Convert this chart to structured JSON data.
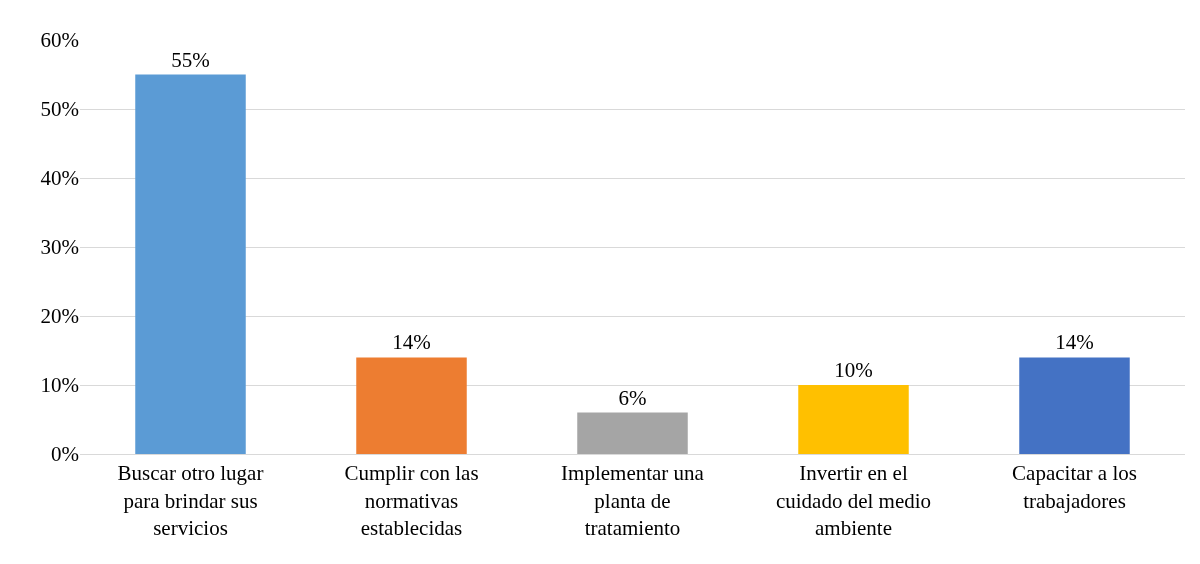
{
  "chart_data": {
    "type": "bar",
    "categories": [
      "Buscar otro lugar para brindar sus servicios",
      "Cumplir con las normativas establecidas",
      "Implementar una planta de tratamiento",
      "Invertir en el cuidado del medio ambiente",
      "Capacitar a los trabajadores"
    ],
    "values": [
      55,
      14,
      6,
      10,
      14
    ],
    "colors": [
      "#5b9bd5",
      "#ed7d31",
      "#a5a5a5",
      "#ffc000",
      "#4472c4"
    ],
    "value_labels": [
      "55%",
      "14%",
      "6%",
      "10%",
      "14%"
    ],
    "ylim": [
      0,
      60
    ],
    "yticks": [
      {
        "value": 0,
        "label": "0%"
      },
      {
        "value": 10,
        "label": "10%"
      },
      {
        "value": 20,
        "label": "20%"
      },
      {
        "value": 30,
        "label": "30%"
      },
      {
        "value": 40,
        "label": "40%"
      },
      {
        "value": 50,
        "label": "50%"
      },
      {
        "value": 60,
        "label": "60%"
      }
    ],
    "grid": "y",
    "legend": false
  }
}
